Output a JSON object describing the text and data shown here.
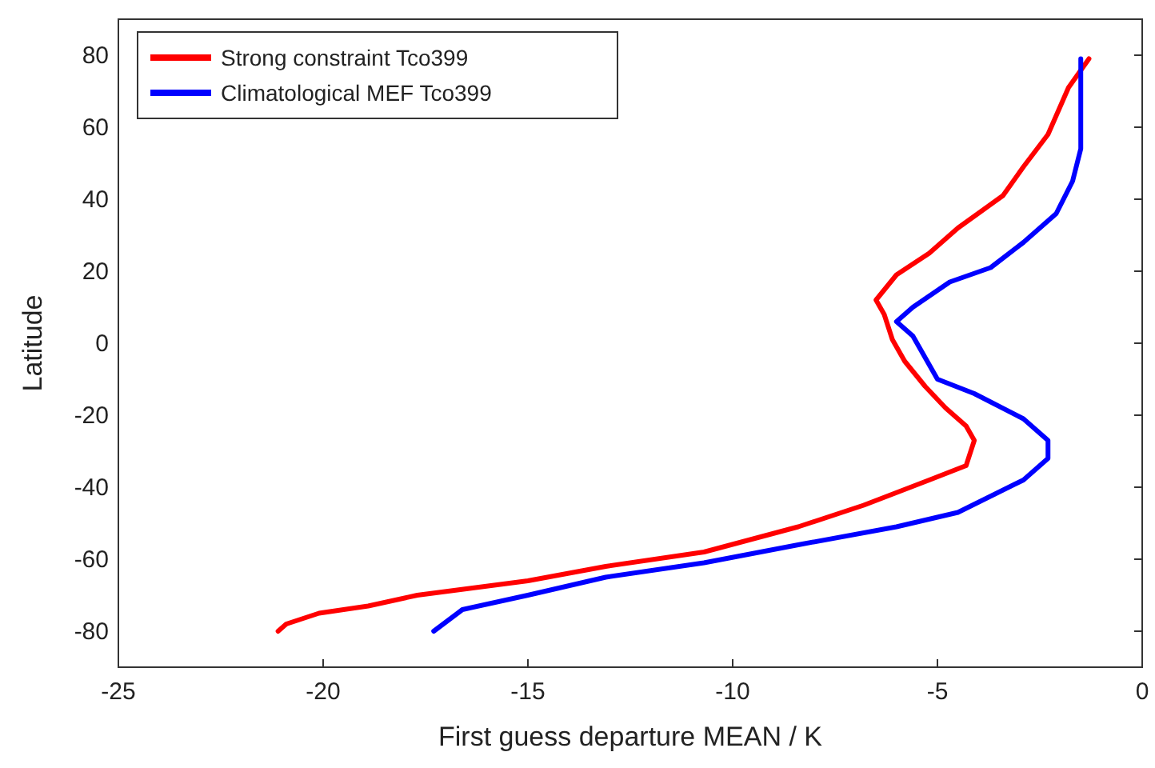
{
  "chart_data": {
    "type": "line",
    "xlabel": "First guess departure MEAN / K",
    "ylabel": "Latitude",
    "xlim": [
      -25,
      0
    ],
    "xticks": [
      -25,
      -20,
      -15,
      -10,
      -5,
      0
    ],
    "ylim": [
      -90,
      90
    ],
    "yticks": [
      -80,
      -60,
      -40,
      -20,
      0,
      20,
      40,
      60,
      80
    ],
    "grid": false,
    "legend": "top left",
    "line_style": "solid",
    "series": [
      {
        "name": "Strong constraint Tco399",
        "color": "#ff0000",
        "x": [
          -1.3,
          -1.8,
          -2.3,
          -2.9,
          -3.4,
          -4.5,
          -5.2,
          -6.0,
          -6.5,
          -6.3,
          -6.1,
          -5.8,
          -5.3,
          -4.8,
          -4.3,
          -4.1,
          -4.3,
          -5.2,
          -6.8,
          -8.4,
          -10.7,
          -13.1,
          -15.0,
          -17.7,
          -18.9,
          -20.1,
          -20.9,
          -21.1
        ],
        "values": [
          79,
          71,
          58,
          49,
          41,
          32,
          25,
          19,
          12,
          8,
          1,
          -5,
          -12,
          -18,
          -23,
          -27,
          -34,
          -38,
          -45,
          -51,
          -58,
          -62,
          -66,
          -70,
          -73,
          -75,
          -78,
          -80
        ]
      },
      {
        "name": "Climatological MEF Tco399",
        "color": "#0000ff",
        "x": [
          -1.5,
          -1.5,
          -1.5,
          -1.7,
          -2.1,
          -2.9,
          -3.7,
          -4.7,
          -5.6,
          -6.0,
          -5.6,
          -5.4,
          -5.0,
          -4.1,
          -2.9,
          -2.3,
          -2.3,
          -2.9,
          -4.5,
          -6.0,
          -8.4,
          -10.7,
          -13.1,
          -15.0,
          -16.6,
          -17.3
        ],
        "values": [
          79,
          67,
          54,
          45,
          36,
          28,
          21,
          17,
          10,
          6,
          2,
          -2,
          -10,
          -14,
          -21,
          -27,
          -32,
          -38,
          -47,
          -51,
          -56,
          -61,
          -65,
          -70,
          -74,
          -80
        ]
      }
    ]
  }
}
